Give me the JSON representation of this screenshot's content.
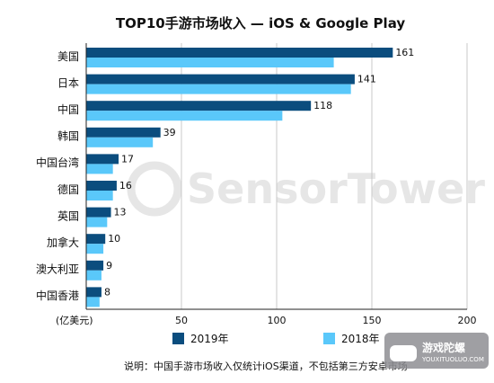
{
  "chart_data": {
    "type": "bar",
    "orientation": "horizontal",
    "title": "TOP10手游市场收入 — iOS & Google Play",
    "unit_label": "(亿美元)",
    "categories": [
      "美国",
      "日本",
      "中国",
      "韩国",
      "中国台湾",
      "德国",
      "英国",
      "加拿大",
      "澳大利亚",
      "中国香港"
    ],
    "series": [
      {
        "name": "2019年",
        "color": "#0b4d7e",
        "values": [
          161,
          141,
          118,
          39,
          17,
          16,
          13,
          10,
          9,
          8
        ],
        "labels": [
          "161",
          "141",
          "118",
          "39",
          "17",
          "16",
          "13",
          "10",
          "9",
          "8"
        ]
      },
      {
        "name": "2018年",
        "color": "#5ac8fa",
        "values": [
          130,
          139,
          103,
          35,
          14,
          14,
          11,
          9,
          8,
          7
        ]
      }
    ],
    "xlim": [
      0,
      200
    ],
    "x_ticks": [
      50,
      100,
      150,
      200
    ],
    "grid": "vertical",
    "legend_position": "bottom"
  },
  "note": "说明：中国手游市场收入仅统计iOS渠道，不包括第三方安卓市场",
  "watermark": "SensorTower",
  "badge": {
    "text": "游戏陀螺",
    "subtext": "YOUXITUOLUO.COM"
  }
}
